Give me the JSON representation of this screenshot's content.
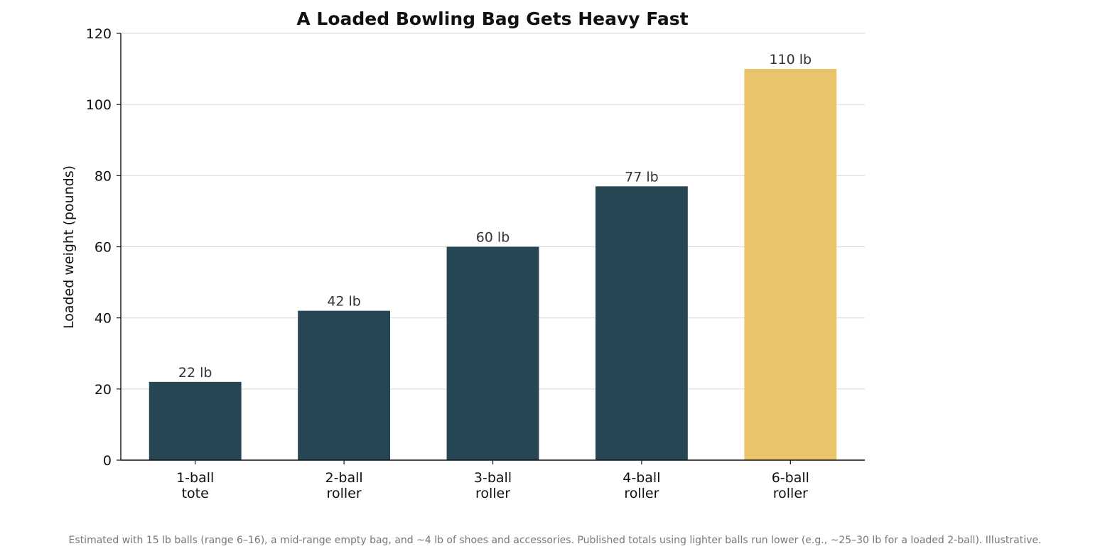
{
  "chart_data": {
    "type": "bar",
    "title": "A Loaded Bowling Bag Gets Heavy Fast",
    "xlabel": "",
    "ylabel": "Loaded weight (pounds)",
    "ylim": [
      0,
      120
    ],
    "yticks": [
      0,
      20,
      40,
      60,
      80,
      100,
      120
    ],
    "grid": "horizontal",
    "categories": [
      [
        "1-ball",
        "tote"
      ],
      [
        "2-ball",
        "roller"
      ],
      [
        "3-ball",
        "roller"
      ],
      [
        "4-ball",
        "roller"
      ],
      [
        "6-ball",
        "roller"
      ]
    ],
    "values": [
      22,
      42,
      60,
      77,
      110
    ],
    "value_labels": [
      "22 lb",
      "42 lb",
      "60 lb",
      "77 lb",
      "110 lb"
    ],
    "colors": [
      "#264653",
      "#264653",
      "#264653",
      "#264653",
      "#e9c46a"
    ],
    "footnote": "Estimated with 15 lb balls (range 6–16), a mid-range empty bag, and ~4 lb of shoes and accessories. Published totals using lighter balls run lower (e.g., ~25–30 lb for a loaded 2-ball). Illustrative."
  }
}
